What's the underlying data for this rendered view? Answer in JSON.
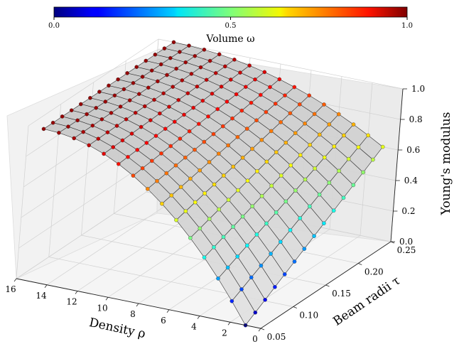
{
  "chart_data": {
    "type": "surface-scatter-3d",
    "title": "",
    "xlabel": "Density ρ",
    "ylabel": "Beam radii τ",
    "zlabel": "Young's modulus",
    "xlim": [
      0,
      16
    ],
    "ylim": [
      0.05,
      0.25
    ],
    "zlim": [
      0.0,
      1.0
    ],
    "x_ticks": [
      "0",
      "2",
      "4",
      "6",
      "8",
      "10",
      "12",
      "14",
      "16"
    ],
    "y_ticks": [
      "0.05",
      "0.10",
      "0.15",
      "0.20",
      "0.25"
    ],
    "z_ticks": [
      "0.0",
      "0.2",
      "0.4",
      "0.6",
      "0.8",
      "1.0"
    ],
    "colorbar": {
      "label": "Volume ω",
      "ticks": [
        "0.0",
        "0.5",
        "1.0"
      ],
      "range": [
        0.0,
        1.0
      ],
      "colormap": "jet",
      "location": "top"
    },
    "surface": {
      "x_range": [
        1,
        15
      ],
      "y_range": [
        0.05,
        0.25
      ],
      "grid": [
        15,
        15
      ],
      "color": "#d6d6d6",
      "edge_color": "#333333",
      "z_model": "1 - (1 - (x-1)/14)^2 * (1 - 0.6*(y-0.05)/0.2)"
    },
    "points": {
      "marker_color_variable": "volume",
      "x_range": [
        1,
        15
      ],
      "y_range": [
        0.05,
        0.25
      ],
      "grid": [
        15,
        15
      ]
    },
    "grid": true
  }
}
